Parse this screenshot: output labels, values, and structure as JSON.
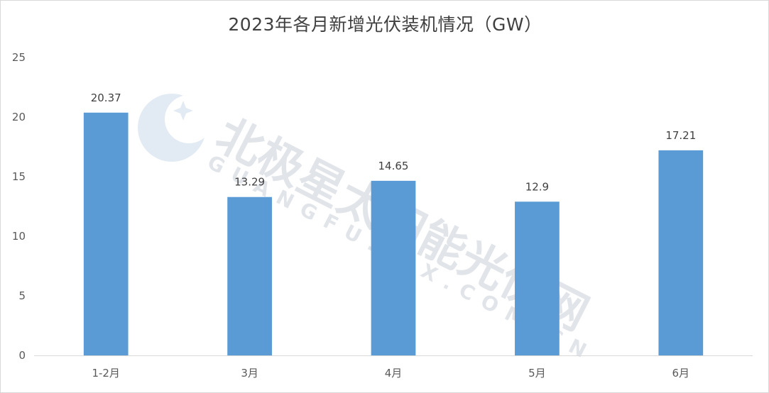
{
  "watermark": {
    "brand_cn": "北极星太阳能光伏网",
    "brand_en": "GUANGFU.BJX.COM.CN"
  },
  "chart_data": {
    "type": "bar",
    "title": "2023年各月新增光伏装机情况（GW）",
    "categories": [
      "1-2月",
      "3月",
      "4月",
      "5月",
      "6月"
    ],
    "values": [
      20.37,
      13.29,
      14.65,
      12.9,
      17.21
    ],
    "data_labels": [
      "20.37",
      "13.29",
      "14.65",
      "12.9",
      "17.21"
    ],
    "ylim": [
      0,
      25
    ],
    "yticks": [
      0,
      5,
      10,
      15,
      20,
      25
    ],
    "grid": false,
    "bar_color": "#5b9bd5"
  }
}
